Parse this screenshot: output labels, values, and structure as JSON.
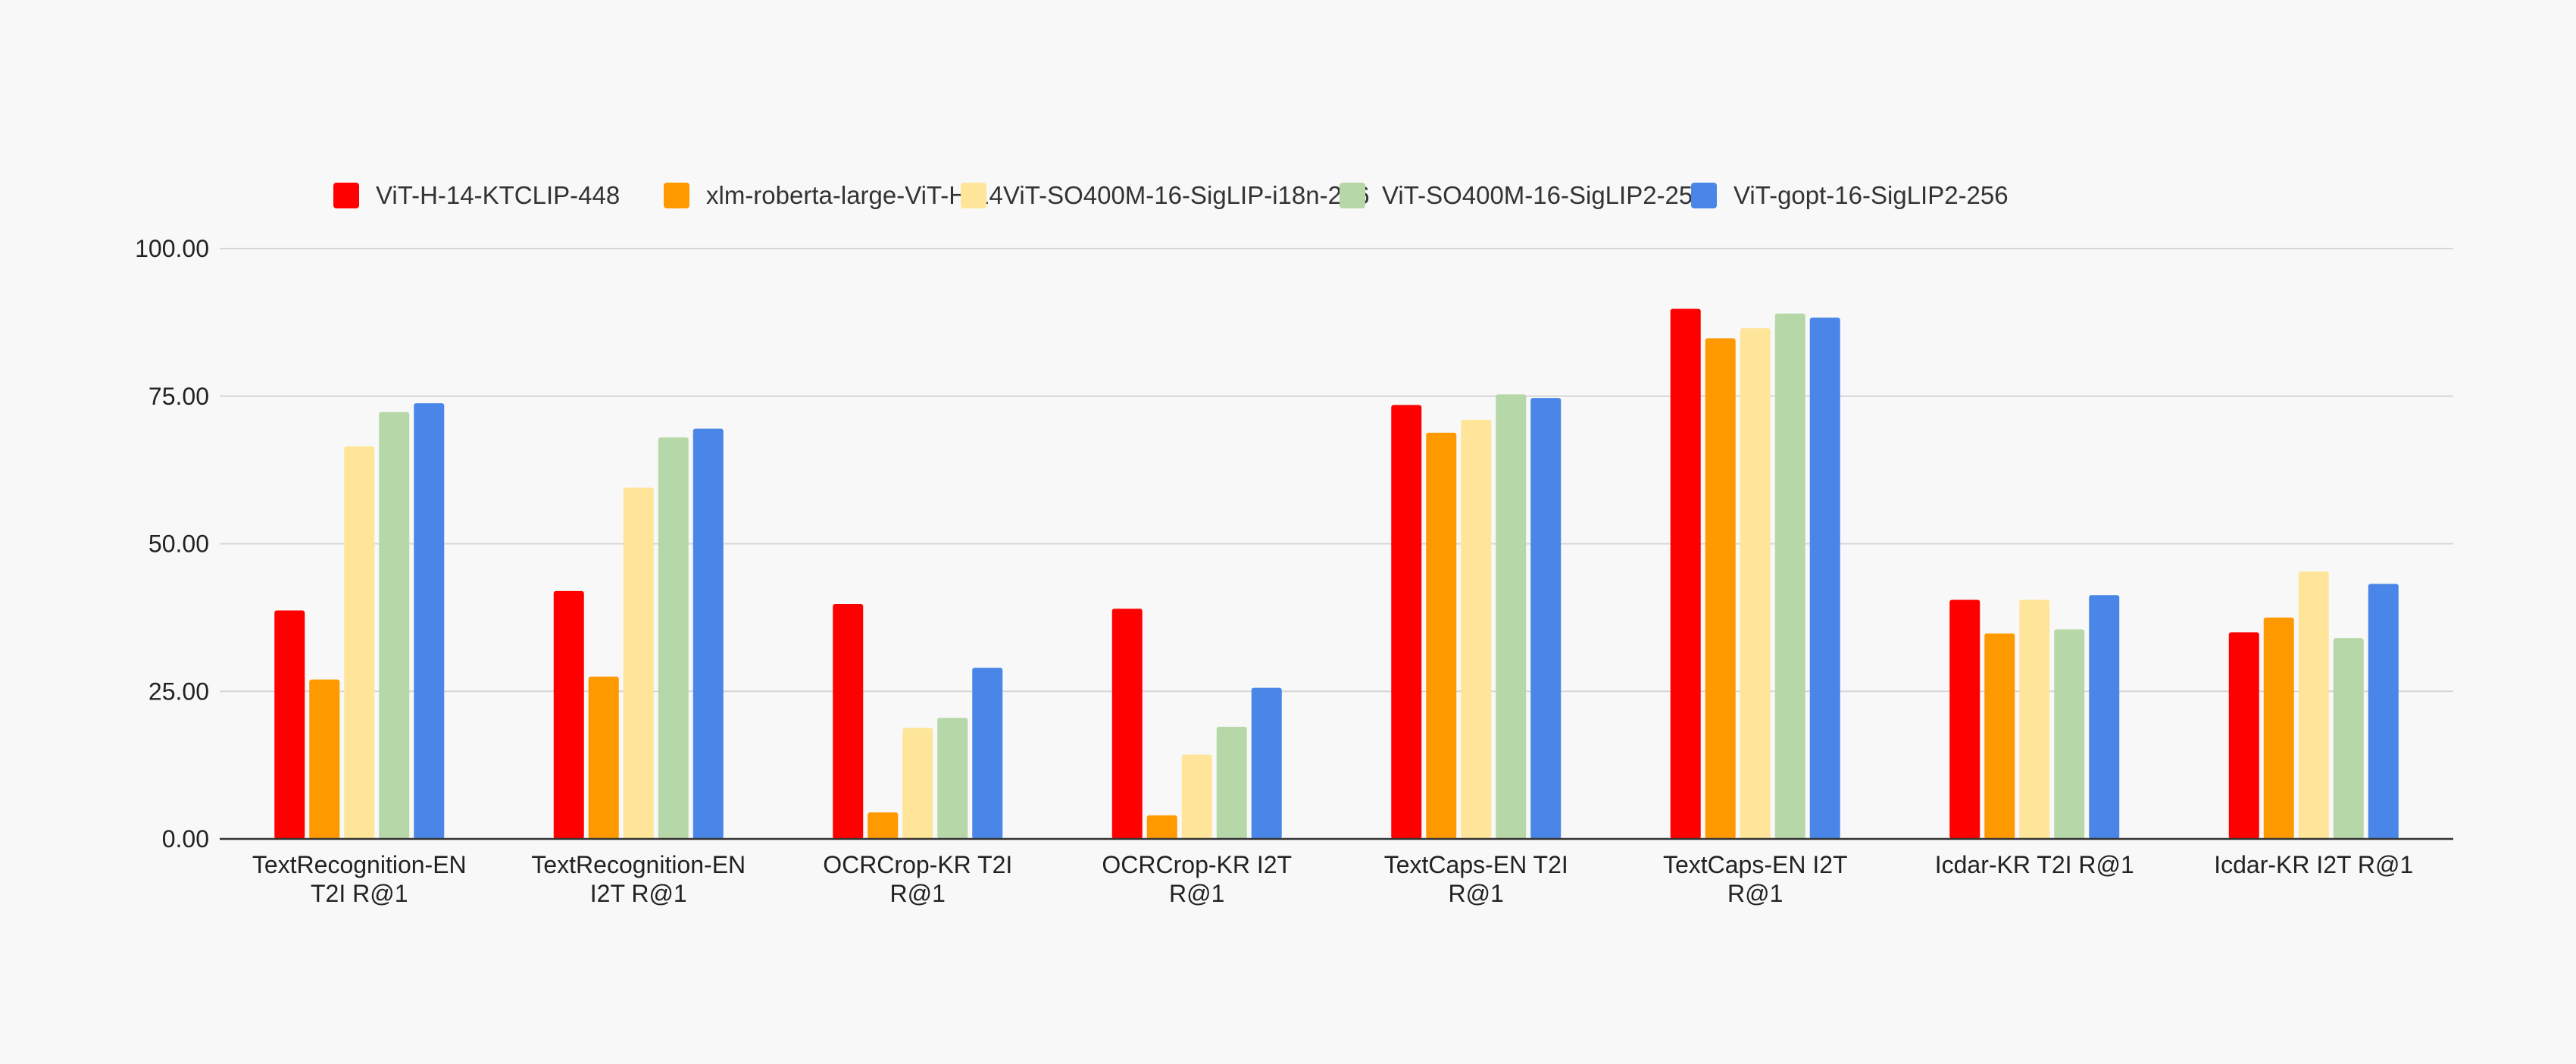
{
  "chart_data": {
    "type": "bar",
    "title": "",
    "xlabel": "",
    "ylabel": "",
    "ylim": [
      0,
      100
    ],
    "yticks": [
      "0.00",
      "25.00",
      "50.00",
      "75.00",
      "100.00"
    ],
    "grid": true,
    "legend_position": "top",
    "categories": [
      [
        "TextRecognition-EN",
        "T2I R@1"
      ],
      [
        "TextRecognition-EN",
        "I2T R@1"
      ],
      [
        "OCRCrop-KR T2I",
        "R@1"
      ],
      [
        "OCRCrop-KR I2T",
        "R@1"
      ],
      [
        "TextCaps-EN T2I",
        "R@1"
      ],
      [
        "TextCaps-EN I2T",
        "R@1"
      ],
      [
        "Icdar-KR T2I R@1"
      ],
      [
        "Icdar-KR I2T R@1"
      ]
    ],
    "series": [
      {
        "name": "ViT-H-14-KTCLIP-448",
        "color": "#ff0000",
        "values": [
          38.7,
          42.0,
          39.8,
          39.0,
          73.5,
          89.8,
          40.5,
          35.0
        ]
      },
      {
        "name": "xlm-roberta-large-ViT-H-14",
        "color": "#ff9900",
        "values": [
          27.0,
          27.5,
          4.5,
          4.0,
          68.8,
          84.8,
          34.8,
          37.5
        ]
      },
      {
        "name": "ViT-SO400M-16-SigLIP-i18n-256",
        "color": "#ffe599",
        "values": [
          66.5,
          59.5,
          18.8,
          14.3,
          71.0,
          86.5,
          40.5,
          45.3
        ]
      },
      {
        "name": "ViT-SO400M-16-SigLIP2-256",
        "color": "#b6d7a8",
        "values": [
          72.3,
          68.0,
          20.5,
          19.0,
          75.3,
          89.0,
          35.5,
          34.0
        ]
      },
      {
        "name": "ViT-gopt-16-SigLIP2-256",
        "color": "#4a86e8",
        "values": [
          73.8,
          69.5,
          29.0,
          25.6,
          74.7,
          88.3,
          41.3,
          43.2
        ]
      }
    ]
  }
}
